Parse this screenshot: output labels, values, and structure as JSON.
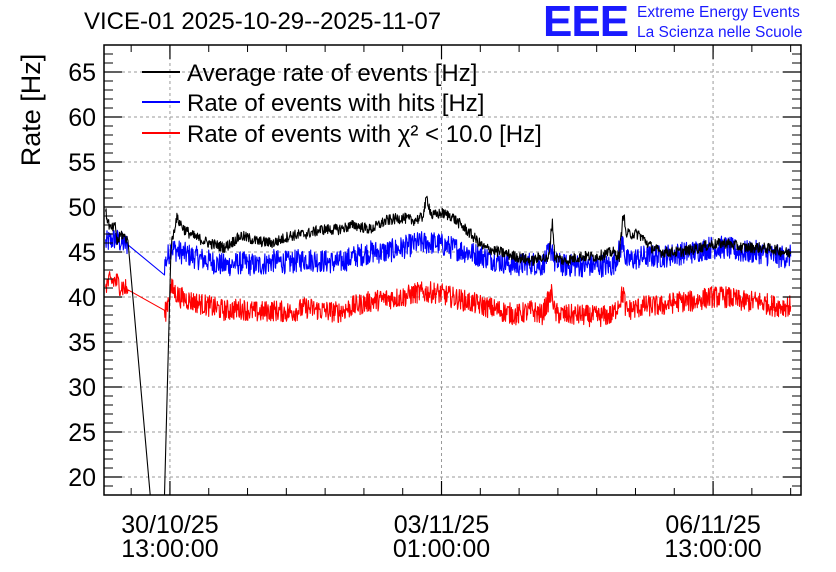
{
  "logo": {
    "mark": "EEE",
    "line1": "Extreme Energy Events",
    "line2": "La Scienza nelle Scuole",
    "color": "#1a1aff"
  },
  "chart_data": {
    "type": "line",
    "title": "VICE-01 2025-10-29--2025-11-07",
    "ylabel": "Rate [Hz]",
    "xlabel": "",
    "ylim": [
      18,
      68
    ],
    "yticks": [
      20,
      25,
      30,
      35,
      40,
      45,
      50,
      55,
      60,
      65
    ],
    "xlim_hours": [
      -7.4,
      208.2
    ],
    "xticks": [
      {
        "hours": 13,
        "label_date": "30/10/25",
        "label_time": "13:00:00"
      },
      {
        "hours": 97,
        "label_date": "03/11/25",
        "label_time": "01:00:00"
      },
      {
        "hours": 181,
        "label_date": "06/11/25",
        "label_time": "13:00:00"
      }
    ],
    "grid": true,
    "legend_position": "top-left",
    "series": [
      {
        "name": "Average rate of events [Hz]",
        "color": "#000000",
        "noise": 0.6,
        "points": [
          [
            -6.9,
            49.4
          ],
          [
            -5.4,
            47.5
          ],
          [
            -3.8,
            47.8
          ],
          [
            -3.4,
            46.0
          ],
          [
            -2.0,
            47.0
          ],
          [
            0.0,
            46.3
          ],
          [
            6.9,
            18.0
          ],
          [
            11.3,
            18.0
          ],
          [
            13.3,
            45.5
          ],
          [
            15.0,
            48.8
          ],
          [
            17.5,
            47.5
          ],
          [
            20,
            46.8
          ],
          [
            25,
            46.0
          ],
          [
            30,
            45.5
          ],
          [
            35,
            46.8
          ],
          [
            40,
            46.2
          ],
          [
            45,
            46.0
          ],
          [
            50,
            46.8
          ],
          [
            55,
            47.0
          ],
          [
            60,
            47.5
          ],
          [
            65,
            47.5
          ],
          [
            70,
            48.0
          ],
          [
            75,
            47.5
          ],
          [
            80,
            48.5
          ],
          [
            85,
            48.8
          ],
          [
            88,
            48.5
          ],
          [
            91,
            48.8
          ],
          [
            92.5,
            51.0
          ],
          [
            94,
            49.0
          ],
          [
            97,
            49.3
          ],
          [
            100,
            49.0
          ],
          [
            103,
            48.0
          ],
          [
            106,
            47.0
          ],
          [
            110,
            45.5
          ],
          [
            115,
            45.0
          ],
          [
            120,
            44.5
          ],
          [
            125,
            44.0
          ],
          [
            128,
            44.5
          ],
          [
            130,
            44.0
          ],
          [
            131.3,
            48.5
          ],
          [
            132,
            44.5
          ],
          [
            135,
            44.0
          ],
          [
            140,
            44.5
          ],
          [
            145,
            44.5
          ],
          [
            150,
            45.0
          ],
          [
            152,
            44.5
          ],
          [
            153.3,
            49.6
          ],
          [
            154,
            47.0
          ],
          [
            158,
            47.0
          ],
          [
            162,
            45.5
          ],
          [
            165,
            45.0
          ],
          [
            170,
            45.0
          ],
          [
            175,
            45.3
          ],
          [
            180,
            45.8
          ],
          [
            185,
            46.0
          ],
          [
            190,
            45.5
          ],
          [
            195,
            45.5
          ],
          [
            200,
            45.3
          ],
          [
            205,
            44.8
          ]
        ]
      },
      {
        "name": "Rate of events with hits [Hz]",
        "color": "#0000ff",
        "noise": 1.3,
        "points": [
          [
            -6.9,
            46.0
          ],
          [
            -4,
            46.5
          ],
          [
            -2,
            46.0
          ],
          [
            0.0,
            45.8
          ],
          [
            11.3,
            43.5
          ],
          [
            13.3,
            45.5
          ],
          [
            16,
            45.0
          ],
          [
            20,
            44.5
          ],
          [
            25,
            44.0
          ],
          [
            30,
            43.5
          ],
          [
            35,
            43.8
          ],
          [
            40,
            43.5
          ],
          [
            45,
            44.0
          ],
          [
            50,
            43.8
          ],
          [
            55,
            44.2
          ],
          [
            60,
            44.0
          ],
          [
            65,
            43.8
          ],
          [
            70,
            44.5
          ],
          [
            75,
            45.0
          ],
          [
            80,
            45.0
          ],
          [
            85,
            45.5
          ],
          [
            90,
            46.0
          ],
          [
            95,
            46.0
          ],
          [
            100,
            45.5
          ],
          [
            105,
            45.0
          ],
          [
            110,
            44.5
          ],
          [
            115,
            44.0
          ],
          [
            120,
            43.5
          ],
          [
            125,
            43.8
          ],
          [
            128,
            43.5
          ],
          [
            131.3,
            45.5
          ],
          [
            132,
            43.8
          ],
          [
            135,
            43.5
          ],
          [
            140,
            43.5
          ],
          [
            145,
            43.5
          ],
          [
            150,
            43.5
          ],
          [
            153.3,
            46.2
          ],
          [
            154,
            44.0
          ],
          [
            160,
            44.5
          ],
          [
            165,
            44.5
          ],
          [
            170,
            44.8
          ],
          [
            175,
            45.0
          ],
          [
            180,
            45.5
          ],
          [
            185,
            45.5
          ],
          [
            190,
            45.0
          ],
          [
            195,
            45.0
          ],
          [
            200,
            44.5
          ],
          [
            205,
            44.5
          ]
        ]
      },
      {
        "name": "Rate of events with χ² < 10.0 [Hz]",
        "color": "#ff0000",
        "noise": 1.2,
        "points": [
          [
            -6.9,
            41.5
          ],
          [
            -4,
            41.8
          ],
          [
            -2,
            41.2
          ],
          [
            0.0,
            40.8
          ],
          [
            11.3,
            37.8
          ],
          [
            13.3,
            41.0
          ],
          [
            16,
            40.0
          ],
          [
            20,
            39.5
          ],
          [
            25,
            39.0
          ],
          [
            30,
            38.5
          ],
          [
            35,
            38.7
          ],
          [
            40,
            38.3
          ],
          [
            45,
            38.5
          ],
          [
            50,
            38.3
          ],
          [
            55,
            38.8
          ],
          [
            60,
            38.5
          ],
          [
            65,
            38.3
          ],
          [
            70,
            39.0
          ],
          [
            75,
            39.5
          ],
          [
            80,
            39.8
          ],
          [
            85,
            40.0
          ],
          [
            90,
            40.5
          ],
          [
            95,
            40.5
          ],
          [
            100,
            40.0
          ],
          [
            105,
            39.5
          ],
          [
            110,
            39.0
          ],
          [
            115,
            38.5
          ],
          [
            120,
            38.0
          ],
          [
            125,
            38.5
          ],
          [
            128,
            38.0
          ],
          [
            131.3,
            40.5
          ],
          [
            132,
            38.2
          ],
          [
            135,
            38.0
          ],
          [
            140,
            38.0
          ],
          [
            145,
            37.8
          ],
          [
            150,
            38.0
          ],
          [
            153.3,
            40.5
          ],
          [
            154,
            38.5
          ],
          [
            160,
            39.0
          ],
          [
            165,
            39.0
          ],
          [
            170,
            39.5
          ],
          [
            175,
            39.5
          ],
          [
            180,
            40.0
          ],
          [
            185,
            40.0
          ],
          [
            190,
            39.5
          ],
          [
            195,
            39.5
          ],
          [
            200,
            39.0
          ],
          [
            205,
            39.0
          ]
        ]
      }
    ]
  }
}
